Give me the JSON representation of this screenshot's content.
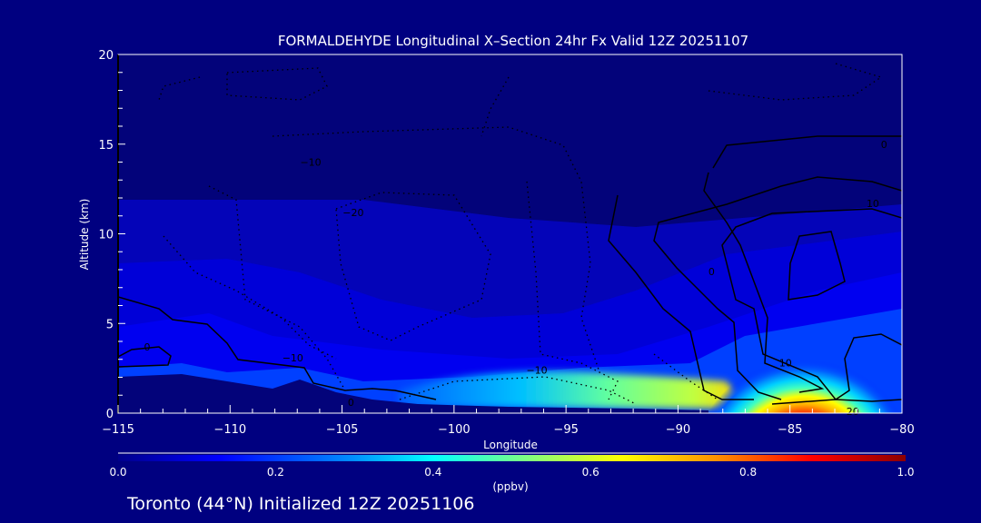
{
  "chart_data": {
    "type": "heatmap",
    "title": "FORMALDEHYDE Longitudinal X–Section 24hr  Fx Valid 12Z 20251107",
    "xlabel": "Longitude",
    "ylabel": "Altitude (km)",
    "xlim": [
      -115,
      -80
    ],
    "ylim": [
      0,
      20
    ],
    "xticks": [
      -115,
      -110,
      -105,
      -100,
      -95,
      -90,
      -85,
      -80
    ],
    "xtick_labels": [
      "−115",
      "−110",
      "−105",
      "−100",
      "−95",
      "−90",
      "−85",
      "−80"
    ],
    "yticks": [
      0,
      5,
      10,
      15,
      20
    ],
    "ytick_labels": [
      "0",
      "5",
      "10",
      "15",
      "20"
    ],
    "colorbar": {
      "label": "(ppbv)",
      "range": [
        0.0,
        1.0
      ],
      "ticks": [
        "0.0",
        "0.2",
        "0.4",
        "0.6",
        "0.8",
        "1.0"
      ],
      "colors": [
        "#00008b",
        "#0000ff",
        "#0080ff",
        "#00ffff",
        "#80ff80",
        "#ffff00",
        "#ff8000",
        "#ff0000",
        "#8b0000"
      ]
    },
    "features": [
      {
        "name": "surface plume max",
        "lon_range": [
          -87,
          -83
        ],
        "alt_range": [
          0,
          2.5
        ],
        "value": 1.0
      },
      {
        "name": "boundary layer band",
        "lon_range": [
          -100,
          -88
        ],
        "alt_range": [
          0,
          1.5
        ],
        "value": 0.5
      },
      {
        "name": "background upper troposphere",
        "alt_range": [
          5,
          12
        ],
        "value": 0.1
      }
    ],
    "contour_labels": [
      {
        "text": "0",
        "lon": -113.7,
        "alt": 3.7
      },
      {
        "text": "0",
        "lon": -104.6,
        "alt": 0.6
      },
      {
        "text": "−10",
        "lon": -107.2,
        "alt": 3.1
      },
      {
        "text": "−10",
        "lon": -96.3,
        "alt": 2.4
      },
      {
        "text": "−10",
        "lon": -106.4,
        "alt": 14.0
      },
      {
        "text": "−20",
        "lon": -104.5,
        "alt": 11.2
      },
      {
        "text": "0",
        "lon": -88.5,
        "alt": 7.9
      },
      {
        "text": "10",
        "lon": -85.2,
        "alt": 2.8
      },
      {
        "text": "10",
        "lon": -81.3,
        "alt": 11.7
      },
      {
        "text": "0",
        "lon": -80.8,
        "alt": 15.0
      },
      {
        "text": "20",
        "lon": -82.2,
        "alt": 0.1
      }
    ]
  },
  "footer": "Toronto (44°N) Initialized 12Z 20251106"
}
